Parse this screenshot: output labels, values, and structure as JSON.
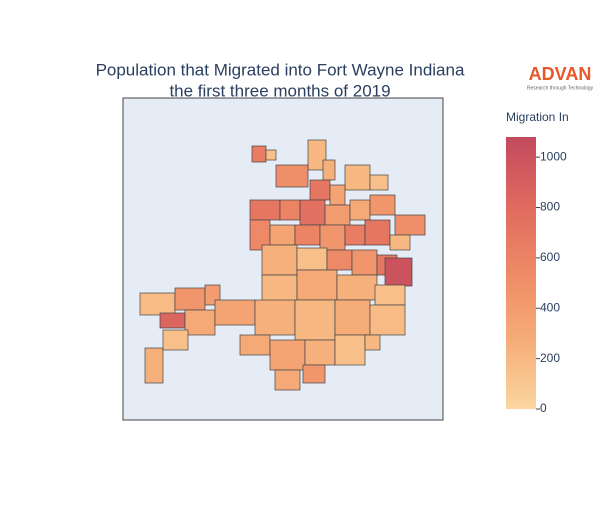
{
  "chart_data": {
    "type": "choropleth",
    "title_lines": [
      "Population that Migrated into Fort Wayne Indiana",
      "the first three months of 2019"
    ],
    "logo": {
      "name": "ADVAN",
      "tagline": "Research through Technology"
    },
    "colorbar_title": "Migration In",
    "clim": [
      0,
      1080
    ],
    "cticks": [
      0,
      200,
      400,
      600,
      800,
      1000
    ],
    "colorscale": [
      "#fbd6a0",
      "#f6ad78",
      "#ee8a66",
      "#df6a5f",
      "#c24a5e"
    ],
    "values": [
      650,
      150,
      200,
      250,
      500,
      200,
      150,
      700,
      350,
      700,
      600,
      750,
      400,
      300,
      450,
      500,
      550,
      350,
      600,
      450,
      650,
      700,
      200,
      250,
      150,
      550,
      450,
      700,
      1000,
      180,
      450,
      400,
      850,
      300,
      350,
      200,
      300,
      250,
      150,
      250,
      200,
      280,
      180,
      300,
      350,
      250,
      150,
      200,
      250,
      150,
      300,
      450
    ]
  }
}
